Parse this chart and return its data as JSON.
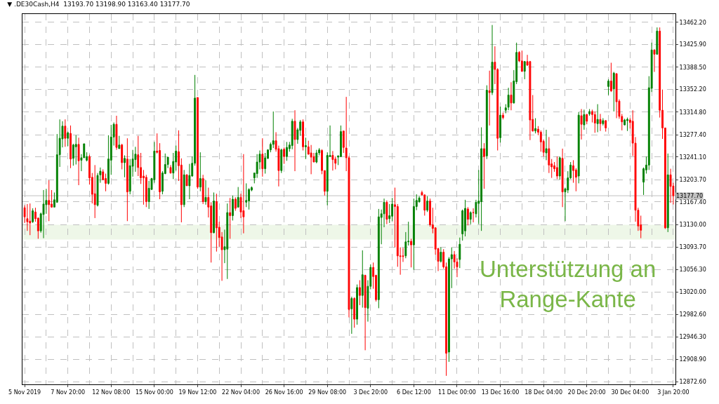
{
  "chart_data": {
    "type": "candlestick",
    "title": "▼ .DE30Cash,H4  13193.70 13198.90 13163.40 13177.70",
    "categories": [
      "5 Nov 2019",
      null,
      null,
      null,
      null,
      null,
      null,
      null,
      null,
      null,
      null,
      null,
      null,
      null,
      null,
      null,
      "7 Nov 20:00",
      null,
      null,
      null,
      null,
      null,
      null,
      null,
      null,
      null,
      null,
      null,
      null,
      null,
      null,
      null,
      "12 Nov 08:00",
      null,
      null,
      null,
      null,
      null,
      null,
      null,
      null,
      null,
      null,
      null,
      null,
      null,
      null,
      null,
      "15 Nov 00:00",
      null,
      null,
      null,
      null,
      null,
      null,
      null,
      null,
      null,
      null,
      null,
      null,
      null,
      null,
      null,
      "19 Nov 12:00",
      null,
      null,
      null,
      null,
      null,
      null,
      null,
      null,
      null,
      null,
      null,
      null,
      null,
      null,
      null,
      "22 Nov 04:00",
      null,
      null,
      null,
      null,
      null,
      null,
      null,
      null,
      null,
      null,
      null,
      null,
      null,
      null,
      null,
      "26 Nov 16:00",
      null,
      null,
      null,
      null,
      null,
      null,
      null,
      null,
      null,
      null,
      null,
      null,
      null,
      null,
      null,
      "29 Nov 08:00",
      null,
      null,
      null,
      null,
      null,
      null,
      null,
      null,
      null,
      null,
      null,
      null,
      null,
      null,
      null,
      "3 Dec 20:00",
      null,
      null,
      null,
      null,
      null,
      null,
      null,
      null,
      null,
      null,
      null,
      null,
      null,
      null,
      null,
      "6 Dec 12:00",
      null,
      null,
      null,
      null,
      null,
      null,
      null,
      null,
      null,
      null,
      null,
      null,
      null,
      null,
      null,
      "11 Dec 00:00",
      null,
      null,
      null,
      null,
      null,
      null,
      null,
      null,
      null,
      null,
      null,
      null,
      null,
      null,
      null,
      "13 Dec 16:00",
      null,
      null,
      null,
      null,
      null,
      null,
      null,
      null,
      null,
      null,
      null,
      null,
      null,
      null,
      null,
      "18 Dec 04:00",
      null,
      null,
      null,
      null,
      null,
      null,
      null,
      null,
      null,
      null,
      null,
      null,
      null,
      null,
      null,
      "20 Dec 20:00",
      null,
      null,
      null,
      null,
      null,
      null,
      null,
      null,
      null,
      null,
      null,
      null,
      null,
      null,
      null,
      "30 Dec 04:00",
      null,
      null,
      null,
      null,
      null,
      null,
      null,
      null,
      null,
      null,
      null,
      null,
      null,
      null,
      null,
      "3 Jan 20:00"
    ],
    "colors": [
      "#ff0000",
      "#ff0000",
      "#ff0000",
      "#008000",
      "#ff0000",
      "#ff0000",
      "#008000",
      "#008000",
      "#008000",
      "#ff0000",
      "#ff0000",
      "#008000",
      "#008000",
      "#008000",
      "#008000",
      "#ff0000",
      "#008000",
      "#ff0000",
      "#008000",
      "#008000",
      "#ff0000",
      "#008000",
      "#008000",
      "#008000",
      "#ff0000",
      "#ff0000",
      "#ff0000",
      "#008000",
      "#008000",
      "#ff0000",
      "#ff0000",
      "#008000",
      "#008000",
      "#008000",
      "#ff0000",
      "#008000",
      "#ff0000",
      "#008000",
      "#ff0000",
      "#008000",
      "#008000",
      "#008000",
      "#ff0000",
      "#ff0000",
      "#ff0000",
      "#ff0000",
      "#008000",
      "#008000",
      "#008000",
      "#ff0000",
      "#ff0000",
      "#008000",
      "#008000",
      "#008000",
      "#ff0000",
      "#008000",
      "#008000",
      "#ff0000",
      "#ff0000",
      "#008000",
      "#ff0000",
      "#008000",
      "#008000",
      "#008000",
      "#ff0000",
      "#008000",
      "#ff0000",
      "#008000",
      "#ff0000",
      "#ff0000",
      "#008000",
      "#ff0000",
      "#ff0000",
      "#ff0000",
      "#008000",
      "#008000",
      "#ff0000",
      "#008000",
      "#ff0000",
      "#008000",
      "#ff0000",
      "#ff0000",
      "#008000",
      "#008000",
      "#008000",
      "#008000",
      "#008000",
      "#008000",
      "#ff0000",
      "#008000",
      "#008000",
      "#008000",
      "#008000",
      "#ff0000",
      "#ff0000",
      "#008000",
      "#ff0000",
      "#008000",
      "#008000",
      "#008000",
      "#ff0000",
      "#008000",
      "#008000",
      "#ff0000",
      "#008000",
      "#ff0000",
      "#ff0000",
      "#ff0000",
      "#008000",
      "#008000",
      "#ff0000",
      "#ff0000",
      "#008000",
      "#008000",
      "#ff0000",
      "#ff0000",
      "#008000",
      "#008000",
      "#ff0000",
      "#ff0000",
      "#ff0000",
      "#008000",
      "#ff0000",
      "#008000",
      "#ff0000",
      "#008000",
      "#ff0000",
      "#008000",
      "#008000",
      "#ff0000",
      "#ff0000",
      "#008000",
      "#008000",
      "#008000",
      "#ff0000",
      "#008000",
      "#008000",
      "#ff0000",
      "#ff0000",
      "#ff0000",
      "#ff0000",
      "#008000",
      "#008000",
      "#ff0000",
      "#008000",
      "#008000",
      "#008000",
      "#ff0000",
      "#ff0000",
      "#008000",
      "#ff0000",
      "#ff0000",
      "#ff0000",
      "#ff0000",
      "#008000",
      "#ff0000",
      "#ff0000",
      "#008000",
      "#008000",
      "#ff0000",
      "#ff0000",
      "#008000",
      "#008000",
      "#008000",
      "#ff0000",
      "#008000",
      "#ff0000",
      "#008000",
      "#008000",
      "#008000",
      "#ff0000",
      "#008000",
      "#ff0000",
      "#008000",
      "#ff0000",
      "#ff0000",
      "#008000",
      "#ff0000",
      "#008000",
      "#008000",
      "#ff0000",
      "#008000",
      "#008000",
      "#ff0000",
      "#ff0000",
      "#008000",
      "#ff0000",
      "#ff0000",
      "#ff0000",
      "#008000",
      "#ff0000",
      "#ff0000",
      "#ff0000",
      "#008000",
      "#ff0000",
      "#ff0000",
      "#ff0000",
      "#ff0000",
      "#008000",
      "#ff0000",
      "#008000",
      "#008000",
      "#008000",
      "#ff0000",
      "#ff0000",
      "#008000",
      "#ff0000",
      "#008000",
      "#ff0000",
      "#008000",
      "#ff0000",
      "#ff0000",
      "#008000",
      "#ff0000",
      "#008000",
      "#ff0000",
      "#008000",
      "#ff0000",
      "#008000",
      "#ff0000",
      "#ff0000",
      "#ff0000",
      "#008000",
      "#008000",
      "#ff0000",
      "#ff0000",
      "#ff0000",
      "#ff0000",
      "#ff0000",
      "#008000",
      "#008000",
      "#008000",
      "#008000",
      "#ff0000",
      "#008000",
      "#ff0000",
      "#ff0000",
      "#ff0000",
      "#008000",
      "#ff0000",
      "#ff0000"
    ],
    "ohlc": [
      [
        13158,
        13162,
        13133,
        13143
      ],
      [
        13140,
        13164,
        13120,
        13135
      ],
      [
        13136,
        13165,
        13113,
        13133
      ],
      [
        13135,
        13157,
        13133,
        13153
      ],
      [
        13151,
        13158,
        13135,
        13140
      ],
      [
        13141,
        13142,
        13107,
        13120
      ],
      [
        13120,
        13150,
        13117,
        13148
      ],
      [
        13147,
        13187,
        13108,
        13164
      ],
      [
        13163,
        13189,
        13148,
        13170
      ],
      [
        13170,
        13203,
        13136,
        13163
      ],
      [
        13164,
        13187,
        13158,
        13159
      ],
      [
        13159,
        13183,
        13159,
        13171
      ],
      [
        13167,
        13279,
        13166,
        13245
      ],
      [
        13245,
        13303,
        13225,
        13272
      ],
      [
        13271,
        13300,
        13257,
        13292
      ],
      [
        13292,
        13303,
        13258,
        13272
      ],
      [
        13272,
        13283,
        13259,
        13281
      ],
      [
        13280,
        13293,
        13223,
        13238
      ],
      [
        13239,
        13263,
        13227,
        13261
      ],
      [
        13258,
        13277,
        13229,
        13262
      ],
      [
        13262,
        13273,
        13195,
        13235
      ],
      [
        13236,
        13246,
        13218,
        13240
      ],
      [
        13240,
        13263,
        13240,
        13263
      ],
      [
        13236,
        13249,
        13234,
        13242
      ],
      [
        13242,
        13245,
        13196,
        13207
      ],
      [
        13208,
        13215,
        13165,
        13180
      ],
      [
        13181,
        13228,
        13141,
        13163
      ],
      [
        13162,
        13215,
        13160,
        13211
      ],
      [
        13212,
        13224,
        13199,
        13218
      ],
      [
        13217,
        13221,
        13203,
        13204
      ],
      [
        13206,
        13214,
        13185,
        13198
      ],
      [
        13198,
        13277,
        13196,
        13238
      ],
      [
        13236,
        13294,
        13212,
        13274
      ],
      [
        13274,
        13298,
        13260,
        13295
      ],
      [
        13295,
        13309,
        13253,
        13257
      ],
      [
        13255,
        13276,
        13255,
        13261
      ],
      [
        13261,
        13263,
        13221,
        13232
      ],
      [
        13232,
        13244,
        13208,
        13239
      ],
      [
        13238,
        13272,
        13136,
        13184
      ],
      [
        13185,
        13238,
        13180,
        13227
      ],
      [
        13226,
        13253,
        13209,
        13238
      ],
      [
        13237,
        13258,
        13217,
        13246
      ],
      [
        13245,
        13276,
        13210,
        13224
      ],
      [
        13224,
        13248,
        13197,
        13207
      ],
      [
        13210,
        13220,
        13163,
        13207
      ],
      [
        13208,
        13212,
        13159,
        13168
      ],
      [
        13168,
        13202,
        13156,
        13190
      ],
      [
        13188,
        13207,
        13187,
        13206
      ],
      [
        13204,
        13266,
        13199,
        13251
      ],
      [
        13251,
        13280,
        13247,
        13249
      ],
      [
        13252,
        13264,
        13172,
        13184
      ],
      [
        13185,
        13218,
        13180,
        13215
      ],
      [
        13214,
        13247,
        13213,
        13229
      ],
      [
        13229,
        13241,
        13223,
        13241
      ],
      [
        13224,
        13228,
        13214,
        13215
      ],
      [
        13215,
        13248,
        13205,
        13234
      ],
      [
        13233,
        13260,
        13219,
        13251
      ],
      [
        13250,
        13285,
        13202,
        13227
      ],
      [
        13228,
        13239,
        13134,
        13163
      ],
      [
        13163,
        13220,
        13159,
        13212
      ],
      [
        13212,
        13213,
        13194,
        13194
      ],
      [
        13194,
        13230,
        13172,
        13211
      ],
      [
        13210,
        13242,
        13209,
        13231
      ],
      [
        13231,
        13376,
        13227,
        13338
      ],
      [
        13339,
        13339,
        13189,
        13192
      ],
      [
        13192,
        13249,
        13185,
        13206
      ],
      [
        13206,
        13212,
        13164,
        13168
      ],
      [
        13168,
        13203,
        13163,
        13175
      ],
      [
        13175,
        13191,
        13142,
        13159
      ],
      [
        13161,
        13167,
        13068,
        13117
      ],
      [
        13117,
        13183,
        13116,
        13169
      ],
      [
        13168,
        13181,
        13086,
        13125
      ],
      [
        13126,
        13135,
        13094,
        13109
      ],
      [
        13110,
        13118,
        13038,
        13089
      ],
      [
        13089,
        13122,
        13067,
        13094
      ],
      [
        13090,
        13165,
        13041,
        13150
      ],
      [
        13150,
        13174,
        13107,
        13145
      ],
      [
        13145,
        13178,
        13137,
        13172
      ],
      [
        13172,
        13175,
        13153,
        13157
      ],
      [
        13159,
        13192,
        13158,
        13175
      ],
      [
        13175,
        13181,
        13141,
        13151
      ],
      [
        13153,
        13246,
        13116,
        13143
      ],
      [
        13167,
        13198,
        13159,
        13170
      ],
      [
        13169,
        13190,
        13155,
        13188
      ],
      [
        13187,
        13193,
        13185,
        13191
      ],
      [
        13207,
        13215,
        13198,
        13215
      ],
      [
        13214,
        13246,
        13207,
        13233
      ],
      [
        13233,
        13252,
        13221,
        13246
      ],
      [
        13246,
        13272,
        13209,
        13222
      ],
      [
        13222,
        13248,
        13214,
        13240
      ],
      [
        13239,
        13254,
        13238,
        13253
      ],
      [
        13253,
        13265,
        13249,
        13262
      ],
      [
        13262,
        13316,
        13256,
        13268
      ],
      [
        13268,
        13282,
        13250,
        13254
      ],
      [
        13255,
        13260,
        13193,
        13219
      ],
      [
        13219,
        13255,
        13215,
        13253
      ],
      [
        13254,
        13257,
        13230,
        13242
      ],
      [
        13242,
        13266,
        13235,
        13257
      ],
      [
        13255,
        13266,
        13250,
        13261
      ],
      [
        13260,
        13304,
        13254,
        13300
      ],
      [
        13300,
        13318,
        13218,
        13270
      ],
      [
        13270,
        13289,
        13263,
        13286
      ],
      [
        13285,
        13302,
        13276,
        13299
      ],
      [
        13299,
        13303,
        13252,
        13258
      ],
      [
        13258,
        13273,
        13238,
        13260
      ],
      [
        13258,
        13268,
        13245,
        13246
      ],
      [
        13248,
        13261,
        13213,
        13241
      ],
      [
        13242,
        13248,
        13233,
        13233
      ],
      [
        13233,
        13253,
        13231,
        13248
      ],
      [
        13248,
        13256,
        13244,
        13253
      ],
      [
        13252,
        13254,
        13213,
        13219
      ],
      [
        13219,
        13219,
        13178,
        13185
      ],
      [
        13185,
        13249,
        13162,
        13244
      ],
      [
        13242,
        13293,
        13242,
        13244
      ],
      [
        13244,
        13251,
        13219,
        13237
      ],
      [
        13238,
        13242,
        13221,
        13231
      ],
      [
        13241,
        13244,
        13228,
        13243
      ],
      [
        13242,
        13293,
        13241,
        13283
      ],
      [
        13284,
        13284,
        13248,
        13257
      ],
      [
        13256,
        13340,
        13218,
        13240
      ],
      [
        13240,
        13243,
        12978,
        12991
      ],
      [
        12992,
        13012,
        12951,
        13009
      ],
      [
        13009,
        13011,
        12961,
        12975
      ],
      [
        12975,
        13032,
        12966,
        13027
      ],
      [
        13027,
        13039,
        12998,
        13014
      ],
      [
        13014,
        13088,
        12994,
        13048
      ],
      [
        13047,
        13048,
        12924,
        12994
      ],
      [
        12993,
        13039,
        12971,
        13029
      ],
      [
        13029,
        13065,
        13024,
        13060
      ],
      [
        13060,
        13068,
        13025,
        13045
      ],
      [
        13047,
        13048,
        13004,
        13007
      ],
      [
        13007,
        13156,
        12993,
        13143
      ],
      [
        13142,
        13155,
        13098,
        13148
      ],
      [
        13148,
        13173,
        13126,
        13167
      ],
      [
        13167,
        13170,
        13131,
        13139
      ],
      [
        13140,
        13164,
        13133,
        13145
      ],
      [
        13144,
        13174,
        13136,
        13164
      ],
      [
        13163,
        13191,
        13093,
        13160
      ],
      [
        13160,
        13164,
        13061,
        13079
      ],
      [
        13079,
        13093,
        13048,
        13078
      ],
      [
        13079,
        13092,
        13069,
        13078
      ],
      [
        13079,
        13118,
        13075,
        13102
      ],
      [
        13102,
        13135,
        13096,
        13103
      ],
      [
        13103,
        13107,
        13060,
        13097
      ],
      [
        13097,
        13173,
        13056,
        13160
      ],
      [
        13160,
        13180,
        13154,
        13170
      ],
      [
        13168,
        13177,
        13166,
        13174
      ],
      [
        13183,
        13186,
        13178,
        13179
      ],
      [
        13179,
        13180,
        13145,
        13154
      ],
      [
        13154,
        13177,
        13151,
        13169
      ],
      [
        13169,
        13173,
        13127,
        13130
      ],
      [
        13130,
        13158,
        13116,
        13124
      ],
      [
        13125,
        13126,
        13081,
        13090
      ],
      [
        13091,
        13092,
        13054,
        13070
      ],
      [
        13070,
        13093,
        13068,
        13085
      ],
      [
        13085,
        13090,
        13058,
        13061
      ],
      [
        13061,
        13068,
        12882,
        12919
      ],
      [
        12921,
        13077,
        12905,
        13074
      ],
      [
        13074,
        13093,
        13026,
        13081
      ],
      [
        13081,
        13087,
        13058,
        13069
      ],
      [
        13069,
        13075,
        13044,
        13061
      ],
      [
        13073,
        13109,
        13059,
        13098
      ],
      [
        13115,
        13155,
        13104,
        13153
      ],
      [
        13120,
        13171,
        13111,
        13157
      ],
      [
        13156,
        13159,
        13129,
        13139
      ],
      [
        13139,
        13152,
        13131,
        13150
      ],
      [
        13150,
        13157,
        13134,
        13150
      ],
      [
        13148,
        13171,
        13142,
        13167
      ],
      [
        13165,
        13220,
        13131,
        13169
      ],
      [
        13168,
        13290,
        13120,
        13255
      ],
      [
        13255,
        13264,
        13189,
        13242
      ],
      [
        13243,
        13359,
        13238,
        13351
      ],
      [
        13350,
        13383,
        13293,
        13347
      ],
      [
        13347,
        13458,
        13343,
        13397
      ],
      [
        13397,
        13423,
        13361,
        13385
      ],
      [
        13385,
        13387,
        13252,
        13272
      ],
      [
        13273,
        13324,
        13265,
        13310
      ],
      [
        13310,
        13314,
        13303,
        13306
      ],
      [
        13318,
        13328,
        13313,
        13322
      ],
      [
        13323,
        13355,
        13318,
        13343
      ],
      [
        13343,
        13364,
        13318,
        13330
      ],
      [
        13330,
        13384,
        13329,
        13366
      ],
      [
        13365,
        13429,
        13361,
        13413
      ],
      [
        13413,
        13415,
        13397,
        13399
      ],
      [
        13399,
        13416,
        13381,
        13382
      ],
      [
        13382,
        13399,
        13369,
        13398
      ],
      [
        13398,
        13409,
        13391,
        13392
      ],
      [
        13398,
        13399,
        13269,
        13302
      ],
      [
        13303,
        13343,
        13283,
        13284
      ],
      [
        13284,
        13305,
        13280,
        13288
      ],
      [
        13287,
        13292,
        13277,
        13282
      ],
      [
        13282,
        13285,
        13250,
        13266
      ],
      [
        13267,
        13270,
        13242,
        13249
      ],
      [
        13248,
        13286,
        13236,
        13255
      ],
      [
        13255,
        13274,
        13215,
        13228
      ],
      [
        13230,
        13238,
        13207,
        13225
      ],
      [
        13227,
        13233,
        13217,
        13222
      ],
      [
        13224,
        13242,
        13205,
        13210
      ],
      [
        13210,
        13242,
        13204,
        13240
      ],
      [
        13239,
        13255,
        13159,
        13184
      ],
      [
        13184,
        13191,
        13136,
        13189
      ],
      [
        13187,
        13218,
        13182,
        13207
      ],
      [
        13207,
        13233,
        13205,
        13228
      ],
      [
        13227,
        13236,
        13199,
        13219
      ],
      [
        13220,
        13223,
        13185,
        13208
      ],
      [
        13210,
        13315,
        13198,
        13310
      ],
      [
        13309,
        13320,
        13270,
        13295
      ],
      [
        13294,
        13319,
        13286,
        13311
      ],
      [
        13311,
        13312,
        13295,
        13300
      ],
      [
        13312,
        13320,
        13309,
        13316
      ],
      [
        13316,
        13319,
        13298,
        13311
      ],
      [
        13311,
        13316,
        13281,
        13297
      ],
      [
        13296,
        13328,
        13282,
        13303
      ],
      [
        13303,
        13312,
        13284,
        13296
      ],
      [
        13296,
        13305,
        13293,
        13301
      ],
      [
        13301,
        13302,
        13283,
        13289
      ],
      [
        13357,
        13369,
        13343,
        13366
      ],
      [
        13366,
        13396,
        13348,
        13350
      ],
      [
        13353,
        13381,
        13316,
        13379
      ],
      [
        13378,
        13379,
        13305,
        13332
      ],
      [
        13333,
        13336,
        13304,
        13308
      ],
      [
        13308,
        13312,
        13285,
        13299
      ],
      [
        13294,
        13304,
        13293,
        13302
      ],
      [
        13301,
        13306,
        13284,
        13303
      ],
      [
        13302,
        13305,
        13288,
        13298
      ],
      [
        13300,
        13318,
        13243,
        13264
      ],
      [
        13264,
        13274,
        13135,
        13154
      ],
      [
        13154,
        13158,
        13120,
        13128
      ],
      [
        13130,
        13145,
        13108,
        13121
      ],
      [
        13200,
        13224,
        13179,
        13222
      ],
      [
        13220,
        13242,
        13214,
        13228
      ],
      [
        13228,
        13374,
        13220,
        13355
      ],
      [
        13354,
        13429,
        13348,
        13417
      ],
      [
        13417,
        13418,
        13381,
        13410
      ],
      [
        13410,
        13454,
        13409,
        13448
      ],
      [
        13448,
        13454,
        13306,
        13318
      ],
      [
        13318,
        13352,
        13271,
        13289
      ],
      [
        13289,
        13289,
        13123,
        13125
      ],
      [
        13125,
        13247,
        13118,
        13212
      ],
      [
        13212,
        13222,
        13166,
        13193
      ],
      [
        13193.7,
        13198.9,
        13163.4,
        13177.7
      ]
    ],
    "ylim": [
      12868,
      13476
    ],
    "yticks": [
      {
        "value": 13462.2,
        "label": "13462.20"
      },
      {
        "value": 13425.9,
        "label": "13425.90"
      },
      {
        "value": 13388.5,
        "label": "13388.50"
      },
      {
        "value": 13352.2,
        "label": "13352.20"
      },
      {
        "value": 13314.8,
        "label": "13314.80"
      },
      {
        "value": 13277.4,
        "label": "13277.40"
      },
      {
        "value": 13241.1,
        "label": "13241.10"
      },
      {
        "value": 13203.7,
        "label": "13203.70"
      },
      {
        "value": 13167.4,
        "label": "13167.40"
      },
      {
        "value": 13130,
        "label": "13130.00"
      },
      {
        "value": 13093.7,
        "label": "13093.70"
      },
      {
        "value": 13056.3,
        "label": "13056.30"
      },
      {
        "value": 13020,
        "label": "13020.00"
      },
      {
        "value": 12982.6,
        "label": "12982.60"
      },
      {
        "value": 12946.3,
        "label": "12946.30"
      },
      {
        "value": 12908.9,
        "label": "12908.90"
      },
      {
        "value": 12872.6,
        "label": "12872.60"
      }
    ],
    "ref_lines": [
      {
        "axis": "y",
        "value": 13177.7,
        "label": "13177.70",
        "color": "#c0c0c0"
      }
    ],
    "bands": [
      {
        "axis": "y",
        "from": 13105.7,
        "to": 13130,
        "color": "#eef7e8"
      }
    ],
    "annotations": [
      "Unterstützung an\nRange-Kante"
    ],
    "grid": true
  }
}
